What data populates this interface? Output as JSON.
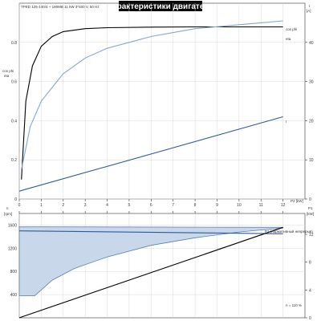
{
  "header": {
    "title": "Характеристики двигателя",
    "subtitle": "TPED 125-180/4 + 180MB 11 kW 3*400 V, 50 Hz"
  },
  "colors": {
    "black": "#000000",
    "light_blue": "#7fa7d3",
    "dark_blue": "#2d5b9a",
    "band_fill": "#c8d8ea",
    "band_stroke": "#5b80b0"
  },
  "chart_data": [
    {
      "type": "line",
      "panel": "top",
      "left_axis": {
        "label": "cos phi / eta",
        "ticks": [
          "0",
          "0.2",
          "0.4",
          "0.6",
          "0.8"
        ],
        "range": [
          0,
          1
        ]
      },
      "right_axis": {
        "label": "I [A]",
        "ticks": [
          "0",
          "10",
          "20",
          "30",
          "40"
        ],
        "range": [
          0,
          50
        ]
      },
      "x_axis": {
        "label": "P2 [kW]",
        "ticks": [
          "0",
          "1",
          "2",
          "3",
          "4",
          "5",
          "6",
          "7",
          "8",
          "9",
          "10",
          "11",
          "12"
        ],
        "range": [
          0,
          13
        ]
      },
      "series": [
        {
          "name": "eta",
          "axis": "left",
          "color": "#000000",
          "x": [
            0.1,
            0.3,
            0.6,
            1,
            1.5,
            2,
            3,
            4,
            6,
            8,
            10,
            12
          ],
          "y": [
            0.1,
            0.5,
            0.68,
            0.78,
            0.83,
            0.855,
            0.87,
            0.875,
            0.878,
            0.879,
            0.879,
            0.879
          ]
        },
        {
          "name": "cos phi",
          "axis": "left",
          "color": "#7fa7d3",
          "x": [
            0.1,
            0.5,
            1,
            2,
            3,
            4,
            5,
            6,
            7,
            8,
            9,
            10,
            11,
            12
          ],
          "y": [
            0.15,
            0.37,
            0.5,
            0.64,
            0.72,
            0.77,
            0.8,
            0.83,
            0.85,
            0.87,
            0.88,
            0.89,
            0.9,
            0.91
          ]
        },
        {
          "name": "I",
          "axis": "right",
          "color": "#2d5b9a",
          "x": [
            0,
            12
          ],
          "y": [
            2,
            21
          ]
        }
      ]
    },
    {
      "type": "area",
      "panel": "bottom",
      "left_axis": {
        "label": "n [rpm]",
        "ticks": [
          "400",
          "800",
          "1200",
          "1600"
        ],
        "range": [
          0,
          1800
        ]
      },
      "right_axis": {
        "label": "P1 [kW]",
        "ticks": [
          "0",
          "4",
          "8",
          "12"
        ],
        "range": [
          0,
          15
        ]
      },
      "x_axis": {
        "ticks": [],
        "range": [
          0,
          13
        ]
      },
      "series": [
        {
          "name": "n band upper",
          "axis": "left",
          "color": "#5b80b0",
          "x": [
            0,
            12
          ],
          "y": [
            1570,
            1560
          ]
        },
        {
          "name": "n band lower",
          "axis": "left",
          "color": "#5b80b0",
          "x": [
            0,
            0.7,
            1.5,
            2.5,
            4,
            6,
            8,
            10,
            12
          ],
          "y": [
            380,
            380,
            650,
            850,
            1050,
            1250,
            1380,
            1480,
            1550
          ]
        },
        {
          "name": "n",
          "axis": "left",
          "color": "#2d5b9a",
          "x": [
            0,
            12
          ],
          "y": [
            1500,
            1450
          ]
        },
        {
          "name": "P1",
          "axis": "right",
          "color": "#000000",
          "x": [
            0,
            12
          ],
          "y": [
            0,
            13
          ]
        }
      ]
    }
  ],
  "labels": {
    "eta": "eta",
    "cosphi": "cos phi",
    "current": "I",
    "p1": "P1 (нормативный непрерыв)",
    "n_tolerance": "n = 110 %",
    "top_left_unit": "cos phi",
    "top_left_unit2": "eta",
    "top_right_unit": "I",
    "top_right_unit2": "[A]",
    "x_unit": "P2 [kW]",
    "bot_left_unit": "n",
    "bot_left_unit2": "[rpm]",
    "bot_right_unit": "P1",
    "bot_right_unit2": "[kW]"
  }
}
